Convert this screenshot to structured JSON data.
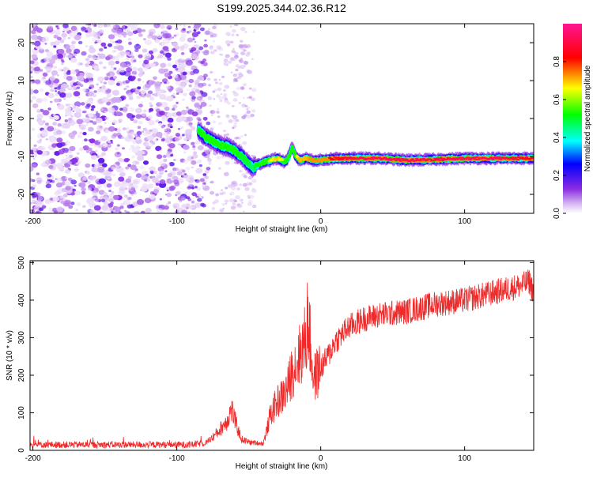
{
  "figure_title": "S199.2025.344.02.36.R12",
  "chart_data": [
    {
      "type": "heatmap",
      "title": "S199.2025.344.02.36.R12",
      "xlabel": "Height of straight line (km)",
      "ylabel": "Frequency (Hz)",
      "xlim": [
        -202,
        148
      ],
      "ylim": [
        -25,
        25
      ],
      "xticks": [
        -200,
        -100,
        0,
        100
      ],
      "xtick_labels": [
        "-200",
        "-100",
        "0",
        "100"
      ],
      "yticks": [
        -20,
        -10,
        0,
        10,
        20
      ],
      "ytick_labels": [
        "-20",
        "-10",
        "0",
        "10",
        "20"
      ],
      "colorbar": {
        "label": "Normalized spectral amplitude",
        "range": [
          0,
          1
        ],
        "ticks": [
          0.0,
          0.2,
          0.4,
          0.6,
          0.8
        ],
        "tick_labels": [
          "0.0",
          "0.2",
          "0.4",
          "0.6",
          "0.8"
        ],
        "colors": [
          "#ffffff",
          "#8a2be2",
          "#0000ff",
          "#00ffff",
          "#00ff00",
          "#ffff00",
          "#ff0000",
          "#ff1493"
        ]
      },
      "noise_region_x": [
        -202,
        -78
      ],
      "sparse_region_x": [
        -78,
        -46
      ],
      "ridge": {
        "x": [
          -85,
          -80,
          -75,
          -70,
          -65,
          -60,
          -55,
          -50,
          -47,
          -45,
          -40,
          -35,
          -30,
          -25,
          -22,
          -20,
          -18,
          -15,
          -10,
          -5,
          0,
          10,
          20,
          40,
          60,
          80,
          100,
          120,
          148
        ],
        "frequency_hz": [
          -3,
          -5,
          -6,
          -7,
          -7.5,
          -8.5,
          -10,
          -12,
          -13,
          -12.5,
          -11.5,
          -11,
          -10.5,
          -11.5,
          -10,
          -7.5,
          -9.5,
          -11,
          -10.5,
          -11,
          -11,
          -10.5,
          -10.5,
          -10.5,
          -11,
          -10.8,
          -10.5,
          -10.5,
          -10.5
        ],
        "amplitude": [
          0.5,
          0.55,
          0.55,
          0.6,
          0.6,
          0.55,
          0.5,
          0.5,
          0.45,
          0.5,
          0.55,
          0.65,
          0.7,
          0.6,
          0.6,
          0.5,
          0.6,
          0.7,
          0.7,
          0.75,
          0.8,
          0.85,
          0.9,
          0.95,
          0.95,
          0.9,
          0.95,
          0.95,
          0.85
        ]
      }
    },
    {
      "type": "line",
      "xlabel": "Height of straight line (km)",
      "ylabel": "SNR (10 * v/v)",
      "xlim": [
        -202,
        148
      ],
      "ylim": [
        0,
        505
      ],
      "xticks": [
        -200,
        -100,
        0,
        100
      ],
      "xtick_labels": [
        "-200",
        "-100",
        "0",
        "100"
      ],
      "yticks": [
        0,
        100,
        200,
        300,
        400,
        500
      ],
      "ytick_labels": [
        "0",
        "100",
        "200",
        "300",
        "400",
        "500"
      ],
      "series": [
        {
          "name": "SNR",
          "color": "#ee2a2a",
          "x": [
            -202,
            -180,
            -150,
            -120,
            -90,
            -80,
            -75,
            -70,
            -65,
            -62,
            -58,
            -55,
            -50,
            -45,
            -40,
            -37,
            -35,
            -30,
            -25,
            -22,
            -20,
            -15,
            -10,
            -9,
            -5,
            0,
            5,
            10,
            15,
            20,
            30,
            40,
            50,
            60,
            70,
            80,
            90,
            100,
            110,
            120,
            130,
            140,
            145,
            148
          ],
          "values": [
            15,
            15,
            15,
            15,
            15,
            20,
            35,
            55,
            80,
            110,
            60,
            30,
            22,
            20,
            18,
            60,
            95,
            130,
            150,
            180,
            210,
            250,
            300,
            360,
            190,
            220,
            250,
            290,
            310,
            330,
            350,
            360,
            365,
            370,
            380,
            390,
            395,
            400,
            410,
            420,
            430,
            440,
            450,
            420
          ]
        }
      ]
    }
  ]
}
